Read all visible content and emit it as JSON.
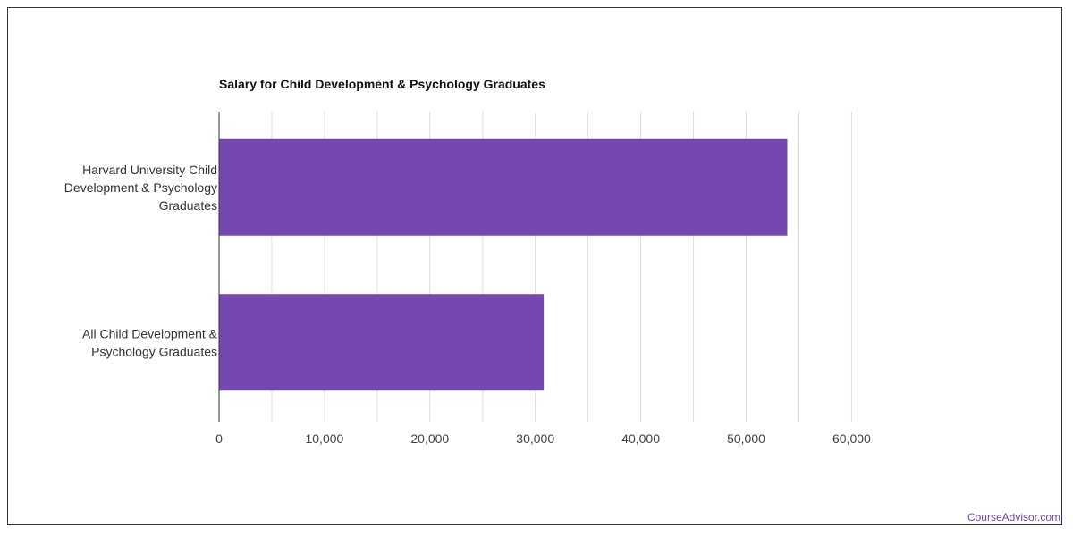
{
  "watermark": "CourseAdvisor.com",
  "colors": {
    "bar": "#7448ae",
    "grid": "#dddddd",
    "axis": "#333333"
  },
  "chart_data": {
    "type": "bar",
    "orientation": "horizontal",
    "title": "Salary for Child Development & Psychology Graduates",
    "categories": [
      [
        "Harvard University Child",
        "Development & Psychology",
        "Graduates"
      ],
      [
        "All Child Development &",
        "Psychology Graduates"
      ]
    ],
    "values": [
      53900,
      30800
    ],
    "xlim": [
      0,
      60000
    ],
    "xticks": [
      0,
      10000,
      20000,
      30000,
      40000,
      50000,
      60000
    ],
    "xtick_labels": [
      "0",
      "10,000",
      "20,000",
      "30,000",
      "40,000",
      "50,000",
      "60,000"
    ],
    "grid": true,
    "legend": "none"
  }
}
